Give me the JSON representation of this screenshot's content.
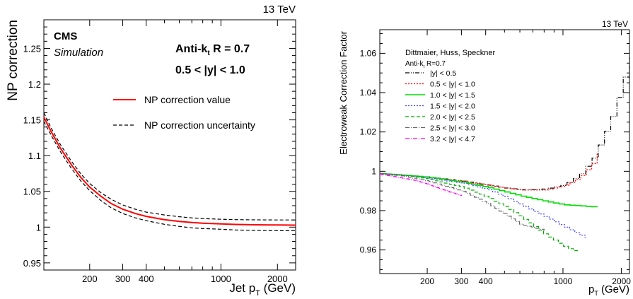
{
  "chart_data": [
    {
      "type": "line",
      "energy": "13 TeV",
      "experiment": "CMS",
      "subtitle": "Simulation",
      "algorithm": "Anti-k_t R = 0.7",
      "algorithm_base": "Anti-k",
      "algorithm_sub": "t",
      "algorithm_rest": " R = 0.7",
      "rapidity_bin": "0.5 < |y| < 1.0",
      "ylabel": "NP correction",
      "xlabel": "Jet p_T (GeV)",
      "xlabel_base": "Jet p",
      "xlabel_sub": "T",
      "xlabel_unit": " (GeV)",
      "xscale": "log",
      "xlim": [
        114,
        2500
      ],
      "ylim": [
        0.94,
        1.29
      ],
      "xticks": [
        200,
        300,
        400,
        1000,
        2000
      ],
      "xtick_labels": [
        "200",
        "300",
        "400",
        "1000",
        "2000"
      ],
      "yticks": [
        0.95,
        1.0,
        1.05,
        1.1,
        1.15,
        1.2,
        1.25
      ],
      "ytick_labels": [
        "0.95",
        "1",
        "1.05",
        "1.1",
        "1.15",
        "1.2",
        "1.25"
      ],
      "legend_position": "top-right",
      "series": [
        {
          "name": "NP correction value",
          "color": "#ff0000",
          "style": "solid",
          "x": [
            114,
            125,
            140,
            160,
            180,
            200,
            230,
            260,
            300,
            350,
            400,
            500,
            600,
            700,
            800,
            1000,
            1200,
            1500,
            2000,
            2500
          ],
          "y": [
            1.154,
            1.133,
            1.11,
            1.087,
            1.069,
            1.056,
            1.043,
            1.033,
            1.025,
            1.019,
            1.015,
            1.0105,
            1.008,
            1.0065,
            1.0055,
            1.0045,
            1.0038,
            1.0033,
            1.003,
            1.0028
          ]
        },
        {
          "name": "NP correction uncertainty",
          "color": "#000000",
          "style": "dashed",
          "x": [
            114,
            125,
            140,
            160,
            180,
            200,
            230,
            260,
            300,
            350,
            400,
            500,
            600,
            700,
            800,
            1000,
            1200,
            1500,
            2000,
            2500
          ],
          "y": [
            1.16,
            1.138,
            1.115,
            1.092,
            1.074,
            1.061,
            1.048,
            1.039,
            1.031,
            1.025,
            1.021,
            1.017,
            1.0145,
            1.013,
            1.012,
            1.011,
            1.0105,
            1.0102,
            1.01,
            1.01
          ]
        },
        {
          "name": "",
          "color": "#000000",
          "style": "dashed",
          "x": [
            114,
            125,
            140,
            160,
            180,
            200,
            230,
            260,
            300,
            350,
            400,
            500,
            600,
            700,
            800,
            1000,
            1200,
            1500,
            2000,
            2500
          ],
          "y": [
            1.148,
            1.128,
            1.105,
            1.082,
            1.064,
            1.051,
            1.037,
            1.027,
            1.019,
            1.013,
            1.009,
            1.004,
            1.001,
            0.999,
            0.998,
            0.997,
            0.996,
            0.9955,
            0.995,
            0.995
          ]
        }
      ]
    },
    {
      "type": "line",
      "energy": "13 TeV",
      "authors": "Dittmaier, Huss, Speckner",
      "algorithm": "Anti-k_t R=0.7",
      "algorithm_base": "Anti-k",
      "algorithm_sub": "t",
      "algorithm_rest": " R=0.7",
      "ylabel": "Electroweak Correction Factor",
      "xlabel": "p_T (GeV)",
      "xlabel_base": "p",
      "xlabel_sub": "T",
      "xlabel_unit": " (GeV)",
      "xscale": "log",
      "xlim": [
        114,
        2200
      ],
      "ylim": [
        0.948,
        1.072
      ],
      "xticks": [
        200,
        300,
        400,
        1000,
        2000
      ],
      "xtick_labels": [
        "200",
        "300",
        "400",
        "1000",
        "2000"
      ],
      "yticks": [
        0.96,
        0.98,
        1.0,
        1.02,
        1.04,
        1.06
      ],
      "ytick_labels": [
        "0.96",
        "0.98",
        "1",
        "1.02",
        "1.04",
        "1.06"
      ],
      "legend_position": "top-left",
      "series": [
        {
          "name": "|y| < 0.5",
          "color": "#000000",
          "style": "dashdotdot",
          "x": [
            114,
            150,
            200,
            300,
            400,
            500,
            600,
            800,
            1000,
            1200,
            1400,
            1600,
            1800,
            2000,
            2200
          ],
          "y": [
            0.9988,
            0.998,
            0.997,
            0.995,
            0.993,
            0.9915,
            0.9905,
            0.991,
            0.993,
            0.998,
            1.006,
            1.018,
            1.03,
            1.045,
            1.058
          ]
        },
        {
          "name": "0.5 < |y| < 1.0",
          "color": "#ff0000",
          "style": "dotted",
          "x": [
            114,
            150,
            200,
            300,
            400,
            500,
            600,
            800,
            1000,
            1200,
            1400,
            1500
          ],
          "y": [
            0.9988,
            0.998,
            0.997,
            0.995,
            0.993,
            0.9915,
            0.9905,
            0.9905,
            0.9925,
            0.9965,
            1.0035,
            1.0095
          ]
        },
        {
          "name": "1.0 < |y| < 1.5",
          "color": "#00dd00",
          "style": "solid",
          "x": [
            114,
            150,
            200,
            300,
            400,
            500,
            600,
            800,
            1000,
            1200,
            1400,
            1500
          ],
          "y": [
            0.9988,
            0.998,
            0.997,
            0.9945,
            0.992,
            0.9895,
            0.9875,
            0.9848,
            0.983,
            0.9825,
            0.982,
            0.9818
          ]
        },
        {
          "name": "1.5 < |y| < 2.0",
          "color": "#4444ff",
          "style": "dotted",
          "x": [
            114,
            150,
            200,
            300,
            400,
            500,
            600,
            800,
            1000,
            1200,
            1300
          ],
          "y": [
            0.9988,
            0.998,
            0.9965,
            0.994,
            0.991,
            0.987,
            0.983,
            0.977,
            0.972,
            0.968,
            0.966
          ]
        },
        {
          "name": "2.0 < |y| < 2.5",
          "color": "#00aa00",
          "style": "dashed",
          "x": [
            114,
            150,
            200,
            300,
            400,
            500,
            600,
            800,
            1000,
            1100,
            1200
          ],
          "y": [
            0.9988,
            0.998,
            0.996,
            0.992,
            0.987,
            0.982,
            0.977,
            0.968,
            0.962,
            0.96,
            0.959
          ]
        },
        {
          "name": "2.5 < |y| < 3.0",
          "color": "#666666",
          "style": "dashdot",
          "x": [
            114,
            150,
            200,
            300,
            400,
            500,
            600,
            800
          ],
          "y": [
            0.9988,
            0.9975,
            0.995,
            0.99,
            0.984,
            0.978,
            0.973,
            0.97
          ]
        },
        {
          "name": "3.2 < |y| < 4.7",
          "color": "#ff00ff",
          "style": "dashdot",
          "x": [
            114,
            140,
            170,
            200,
            250,
            300
          ],
          "y": [
            0.9985,
            0.997,
            0.9955,
            0.9935,
            0.99,
            0.9875
          ]
        }
      ]
    }
  ]
}
